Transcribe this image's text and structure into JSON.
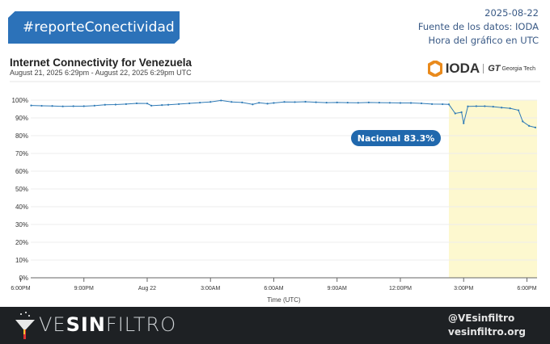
{
  "header": {
    "hashtag": "#reporteConectividad",
    "date": "2025-08-22",
    "source": "Fuente de los datos: IODA",
    "timezone_note": "Hora del gráfico en UTC"
  },
  "chart_header": {
    "title": "Internet Connectivity for Venezuela",
    "subtitle": "August 21, 2025 6:29pm - August 22, 2025 6:29pm UTC",
    "logo_text": "IODA",
    "partner_logo": "Georgia Tech"
  },
  "footer": {
    "brand_prefix": "VE",
    "brand_bold": "SIN",
    "brand_suffix": "FILTRO",
    "handle": "@VEsinfiltro",
    "website": "vesinfiltro.org"
  },
  "chart_data": {
    "type": "line",
    "title": "Internet Connectivity for Venezuela",
    "xlabel": "Time (UTC)",
    "ylabel": "",
    "x_unit": "hours since Aug 21 6:00PM UTC",
    "xlim": [
      0.48,
      24.48
    ],
    "ylim": [
      0,
      100
    ],
    "yticks": [
      "0%",
      "10%",
      "20%",
      "30%",
      "40%",
      "50%",
      "60%",
      "70%",
      "80%",
      "90%",
      "100%"
    ],
    "xticks": [
      {
        "x": 0,
        "label": "6:00PM"
      },
      {
        "x": 3,
        "label": "9:00PM"
      },
      {
        "x": 6,
        "label": "Aug 22"
      },
      {
        "x": 9,
        "label": "3:00AM"
      },
      {
        "x": 12,
        "label": "6:00AM"
      },
      {
        "x": 15,
        "label": "9:00AM"
      },
      {
        "x": 18,
        "label": "12:00PM"
      },
      {
        "x": 21,
        "label": "3:00PM"
      },
      {
        "x": 24,
        "label": "6:00PM"
      }
    ],
    "highlight_range": [
      20.3,
      24.48
    ],
    "highlight_color": "#fdf8cf",
    "line_color": "#2e7ab6",
    "annotation": "Nacional 83.3%",
    "annotation_color": "#2068ad",
    "grid": true,
    "series": [
      {
        "name": "Venezuela",
        "values": [
          [
            0.5,
            97
          ],
          [
            1,
            96.8
          ],
          [
            1.5,
            96.7
          ],
          [
            2,
            96.5
          ],
          [
            2.5,
            96.6
          ],
          [
            3,
            96.6
          ],
          [
            3.5,
            96.9
          ],
          [
            4,
            97.4
          ],
          [
            4.5,
            97.5
          ],
          [
            5,
            97.8
          ],
          [
            5.5,
            98.2
          ],
          [
            6,
            98.1
          ],
          [
            6.2,
            96.9
          ],
          [
            6.7,
            97.2
          ],
          [
            7,
            97.4
          ],
          [
            7.5,
            97.8
          ],
          [
            8,
            98.2
          ],
          [
            8.5,
            98.6
          ],
          [
            9,
            99
          ],
          [
            9.5,
            99.8
          ],
          [
            10,
            99
          ],
          [
            10.5,
            98.7
          ],
          [
            11,
            97.6
          ],
          [
            11.3,
            98.5
          ],
          [
            11.7,
            98
          ],
          [
            12,
            98.4
          ],
          [
            12.5,
            99
          ],
          [
            13,
            98.9
          ],
          [
            13.5,
            99.1
          ],
          [
            14,
            98.8
          ],
          [
            14.5,
            98.6
          ],
          [
            15,
            98.7
          ],
          [
            15.5,
            98.6
          ],
          [
            16,
            98.5
          ],
          [
            16.5,
            98.7
          ],
          [
            17,
            98.6
          ],
          [
            17.5,
            98.5
          ],
          [
            18,
            98.4
          ],
          [
            18.5,
            98.4
          ],
          [
            19,
            98.2
          ],
          [
            19.5,
            97.8
          ],
          [
            20,
            97.7
          ],
          [
            20.3,
            97.6
          ],
          [
            20.6,
            92.5
          ],
          [
            20.9,
            93.2
          ],
          [
            21,
            87
          ],
          [
            21.2,
            96.5
          ],
          [
            21.6,
            96.6
          ],
          [
            22,
            96.6
          ],
          [
            22.4,
            96.3
          ],
          [
            22.8,
            95.8
          ],
          [
            23.2,
            95.4
          ],
          [
            23.6,
            94.3
          ],
          [
            23.8,
            88
          ],
          [
            24.1,
            85.5
          ],
          [
            24.4,
            84.6
          ]
        ]
      }
    ]
  }
}
